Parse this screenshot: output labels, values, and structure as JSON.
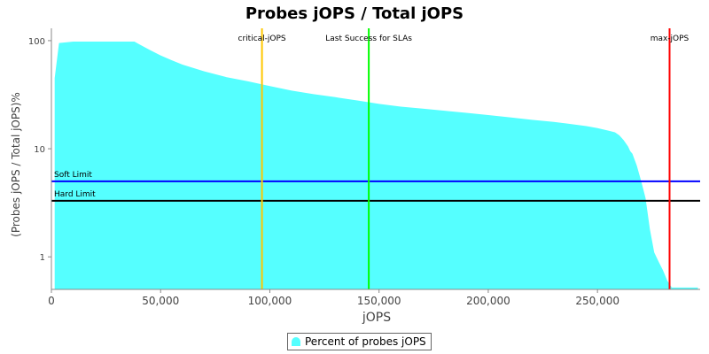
{
  "chart_data": {
    "type": "area",
    "title": "Probes jOPS / Total jOPS",
    "xlabel": "jOPS",
    "ylabel": "(Probes jOPS / Total jOPS)%",
    "y_scale": "log",
    "xlim": [
      0,
      297000
    ],
    "ylim": [
      0.5,
      130
    ],
    "x_ticks": [
      0,
      50000,
      100000,
      150000,
      200000,
      250000
    ],
    "x_tick_labels": [
      "0",
      "50,000",
      "100,000",
      "150,000",
      "200,000",
      "250,000"
    ],
    "y_ticks": [
      1,
      10,
      100
    ],
    "y_tick_labels": [
      "1",
      "10",
      "100"
    ],
    "grid": false,
    "legend_position": "bottom",
    "series": [
      {
        "name": "Percent of probes jOPS",
        "color": "#55ffff",
        "x": [
          1500,
          3500,
          10000,
          20000,
          30000,
          38000,
          40000,
          45000,
          50000,
          55000,
          60000,
          70000,
          80000,
          90000,
          100000,
          110000,
          120000,
          130000,
          140000,
          150000,
          160000,
          170000,
          180000,
          190000,
          200000,
          210000,
          220000,
          230000,
          235000,
          240000,
          245000,
          250000,
          255000,
          258000,
          260000,
          262000,
          264000,
          265000,
          266000,
          268000,
          270000,
          272000,
          274000,
          276000,
          278000,
          280000,
          282000,
          284000,
          286000,
          290000,
          296000
        ],
        "y": [
          45,
          95,
          98,
          98,
          98,
          98,
          93,
          82,
          73,
          66,
          60,
          52,
          46,
          42,
          38,
          34.5,
          32,
          30,
          28,
          26,
          24.5,
          23.5,
          22.5,
          21.5,
          20.5,
          19.5,
          18.5,
          17.7,
          17.2,
          16.7,
          16.2,
          15.5,
          14.7,
          14.2,
          13.3,
          12,
          10.5,
          9.5,
          9,
          7,
          5,
          3.5,
          1.8,
          1.1,
          0.9,
          0.75,
          0.6,
          0.52,
          0.52,
          0.52,
          0.52
        ]
      }
    ],
    "vertical_markers": [
      {
        "label": "critical-jOPS",
        "x": 96400,
        "color": "#ffc800"
      },
      {
        "label": "Last Success for SLAs",
        "x": 145300,
        "color": "#00ff00"
      },
      {
        "label": "max-jOPS",
        "x": 283000,
        "color": "#ff0000"
      }
    ],
    "horizontal_markers": [
      {
        "label": "Soft Limit",
        "y": 5,
        "color": "#0000ff"
      },
      {
        "label": "Hard Limit",
        "y": 3.3,
        "color": "#000000"
      }
    ]
  },
  "legend": {
    "label": "Percent of probes jOPS"
  }
}
